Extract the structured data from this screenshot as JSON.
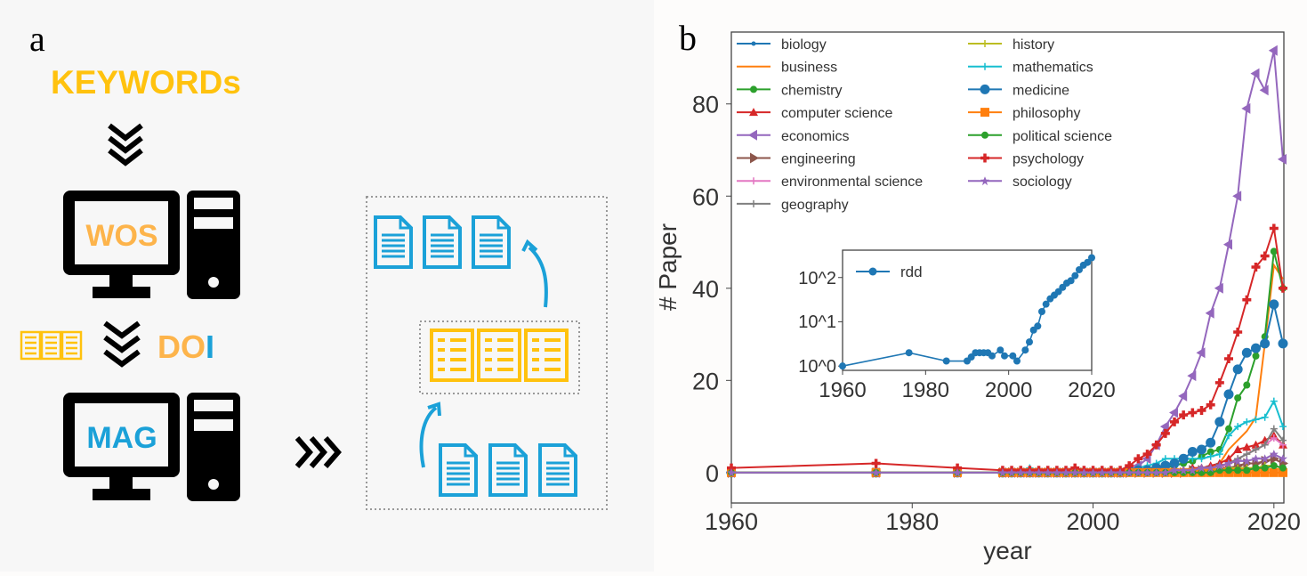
{
  "panel_a": {
    "label": "a",
    "keywords": "KEYWORDs",
    "wos": "WOS",
    "doi_prefix": "DO",
    "doi_suffix": "I",
    "mag": "MAG",
    "colors": {
      "yellow": "#FFC20E",
      "orange": "#FDB44B",
      "blue": "#1BA1D8",
      "black": "#000000"
    }
  },
  "panel_b": {
    "label": "b"
  },
  "chart_data": [
    {
      "type": "line",
      "xlabel": "year",
      "ylabel": "# Paper",
      "xlim": [
        1960,
        2021.1
      ],
      "ylim": [
        -6.6,
        95.6
      ],
      "xticks": [
        1960,
        1980,
        2000,
        2020
      ],
      "yticks": [
        0,
        20,
        40,
        60,
        80
      ],
      "grid": false,
      "legend": "top-left, two columns",
      "x": [
        1960,
        1976,
        1985,
        1990,
        1991,
        1992,
        1993,
        1994,
        1995,
        1996,
        1997,
        1998,
        1999,
        2000,
        2001,
        2002,
        2003,
        2004,
        2005,
        2006,
        2007,
        2008,
        2009,
        2010,
        2011,
        2012,
        2013,
        2014,
        2015,
        2016,
        2017,
        2018,
        2019,
        2020,
        2021
      ],
      "series": [
        {
          "name": "biology",
          "color": "#1f77b4",
          "marker": "dot",
          "values": [
            0,
            0,
            0,
            0,
            0,
            0,
            0,
            0,
            0,
            0,
            0,
            0,
            0,
            0,
            0,
            0,
            0,
            0,
            0,
            0,
            0,
            0,
            0,
            0,
            0,
            0,
            0,
            0.5,
            0.5,
            0.5,
            0.5,
            1,
            1,
            1.5,
            1
          ]
        },
        {
          "name": "business",
          "color": "#ff7f0e",
          "marker": "none",
          "values": [
            0,
            0,
            0,
            0,
            0,
            0,
            0,
            0,
            0,
            0,
            0,
            0,
            0,
            0,
            0,
            0,
            0,
            0,
            0,
            0,
            0,
            0,
            0,
            0,
            0,
            0.5,
            1,
            2,
            5,
            7,
            9,
            12,
            28,
            45,
            42
          ]
        },
        {
          "name": "chemistry",
          "color": "#2ca02c",
          "marker": "circle",
          "values": [
            0,
            0,
            0,
            0,
            0,
            0,
            0,
            0,
            0,
            0,
            0,
            0,
            0,
            0,
            0,
            0,
            0,
            0.5,
            0.5,
            1,
            1,
            1,
            1.5,
            2,
            2.5,
            3.5,
            4.5,
            5,
            9.5,
            16.2,
            19,
            25.3,
            29.5,
            48,
            40
          ]
        },
        {
          "name": "computer science",
          "color": "#d62728",
          "marker": "triangle-up",
          "values": [
            0,
            0,
            0,
            0,
            0,
            0,
            0,
            0,
            0,
            0,
            0,
            0,
            0,
            0,
            0,
            0,
            0,
            0,
            0,
            0,
            0,
            0.5,
            0.5,
            0.5,
            1,
            1,
            1.5,
            2,
            3,
            5,
            5.5,
            6,
            7,
            8,
            6
          ]
        },
        {
          "name": "economics",
          "color": "#9467bd",
          "marker": "triangle-left",
          "values": [
            0,
            0,
            0,
            0,
            0,
            0,
            0,
            0,
            0,
            0,
            0,
            0,
            0,
            0,
            0,
            0,
            0,
            0.5,
            1.5,
            3,
            6,
            10,
            13,
            16.6,
            21,
            26,
            34.6,
            40,
            49.5,
            60,
            79,
            86.6,
            83,
            91.6,
            68
          ]
        },
        {
          "name": "engineering",
          "color": "#8c564b",
          "marker": "triangle-right",
          "values": [
            0,
            0,
            0,
            0,
            0,
            0,
            0,
            0,
            0,
            0,
            0,
            0,
            0,
            0,
            0,
            0,
            0,
            0,
            0,
            0,
            0,
            0,
            0,
            0,
            0.5,
            0.5,
            0.5,
            1,
            1,
            1.5,
            2,
            2,
            2.5,
            3,
            2
          ]
        },
        {
          "name": "environmental science",
          "color": "#e377c2",
          "marker": "tri-down",
          "values": [
            0,
            0,
            0,
            0,
            0,
            0,
            0,
            0,
            0,
            0,
            0,
            0,
            0,
            0,
            0,
            0,
            0,
            0,
            0,
            0,
            0,
            0,
            0,
            0.5,
            0.5,
            0.5,
            1,
            1,
            2,
            3,
            4,
            5,
            6,
            7.5,
            6
          ]
        },
        {
          "name": "geography",
          "color": "#7f7f7f",
          "marker": "tri-up",
          "values": [
            0,
            0,
            0,
            0,
            0,
            0,
            0,
            0,
            0,
            0,
            0,
            0,
            0,
            0,
            0,
            0,
            0,
            0,
            0,
            0,
            0,
            0,
            0.5,
            0.5,
            0.5,
            1,
            1,
            1.5,
            2,
            3,
            4,
            5,
            6,
            9.5,
            7
          ]
        },
        {
          "name": "history",
          "color": "#bcbd22",
          "marker": "vline",
          "values": [
            0,
            0,
            0,
            0,
            0,
            0,
            0,
            0,
            0,
            0,
            0,
            0,
            0,
            0,
            0,
            0,
            0,
            0,
            0,
            0,
            0,
            0,
            0,
            0,
            0,
            0,
            0.5,
            0.5,
            1,
            1,
            1,
            1,
            1.5,
            1.5,
            1
          ]
        },
        {
          "name": "mathematics",
          "color": "#17becf",
          "marker": "tri-left",
          "values": [
            0,
            0,
            0,
            0,
            0.5,
            0.5,
            1,
            0.5,
            0.5,
            0.5,
            0.5,
            0.5,
            0.5,
            0.5,
            0.5,
            0.5,
            0.5,
            0.5,
            1,
            1.5,
            2,
            3,
            3,
            3,
            3,
            3,
            3.5,
            4,
            8,
            10,
            11,
            11.5,
            12,
            15.5,
            10
          ]
        },
        {
          "name": "medicine",
          "color": "#1f77b4",
          "marker": "circle-large",
          "values": [
            0,
            0,
            0,
            0,
            0,
            0,
            0,
            0,
            0,
            0,
            0,
            0,
            0,
            0,
            0,
            0,
            0,
            0.5,
            0.5,
            0.5,
            1,
            1.5,
            2,
            3,
            4.5,
            5,
            6.5,
            11,
            17,
            22.4,
            26,
            27,
            28,
            36.5,
            28
          ]
        },
        {
          "name": "philosophy",
          "color": "#ff7f0e",
          "marker": "square",
          "values": [
            0,
            0,
            0,
            0,
            0,
            0,
            0,
            0,
            0,
            0,
            0,
            0,
            0,
            0,
            0,
            0,
            0,
            0,
            0,
            0,
            0,
            0,
            0,
            0,
            0,
            0,
            0,
            0,
            0,
            0,
            0,
            0,
            0,
            0,
            0
          ]
        },
        {
          "name": "political science",
          "color": "#2ca02c",
          "marker": "hexagon",
          "values": [
            0,
            0,
            0,
            0,
            0,
            0,
            0,
            0,
            0,
            0,
            0,
            0,
            0,
            0,
            0,
            0,
            0,
            0,
            0,
            0,
            0,
            0,
            0,
            0,
            0,
            0,
            0,
            0.5,
            0.5,
            0.5,
            0.5,
            1,
            1,
            1.5,
            1
          ]
        },
        {
          "name": "psychology",
          "color": "#d62728",
          "marker": "plus",
          "values": [
            1,
            2,
            1,
            0.5,
            0.5,
            0.5,
            0.5,
            0.5,
            0.5,
            0.5,
            0.5,
            1,
            0.5,
            0.5,
            0.5,
            0.5,
            0.5,
            1.5,
            3,
            4,
            6,
            8.5,
            11,
            12.5,
            13,
            13.5,
            14.7,
            19.5,
            24.7,
            30.5,
            37.5,
            44.6,
            47,
            53,
            40
          ]
        },
        {
          "name": "sociology",
          "color": "#9467bd",
          "marker": "star",
          "values": [
            0,
            0,
            0,
            0,
            0,
            0,
            0,
            0,
            0,
            0,
            0,
            0,
            0,
            0,
            0,
            0,
            0,
            0,
            0,
            0,
            0,
            0,
            0.5,
            0.5,
            0.5,
            1,
            1,
            1.5,
            2,
            2.5,
            2.5,
            3,
            3,
            4,
            3
          ]
        }
      ]
    },
    {
      "type": "line",
      "scale": "log-y",
      "xlim": [
        1960,
        2020
      ],
      "ylim": [
        0.8,
        415
      ],
      "xticks": [
        1960,
        1980,
        2000,
        2020
      ],
      "yticks": [
        1,
        10,
        100
      ],
      "ytick_labels": [
        "10^0",
        "10^1",
        "10^2"
      ],
      "legend": "top-left",
      "series": [
        {
          "name": "rdd",
          "color": "#1f77b4",
          "marker": "circle",
          "x": [
            1960,
            1976,
            1985,
            1990,
            1991,
            1992,
            1993,
            1994,
            1995,
            1996,
            1998,
            1999,
            2001,
            2002,
            2004,
            2005,
            2006,
            2007,
            2008,
            2009,
            2010,
            2011,
            2012,
            2013,
            2014,
            2015,
            2016,
            2017,
            2018,
            2019,
            2020
          ],
          "values": [
            1,
            2,
            1.3,
            1.3,
            1.6,
            2,
            2,
            2,
            2,
            1.7,
            2.3,
            1.7,
            1.7,
            1.3,
            2.3,
            3.5,
            6.5,
            8,
            17,
            25,
            33,
            40,
            48,
            60,
            75,
            85,
            110,
            150,
            190,
            220,
            280
          ]
        }
      ]
    }
  ]
}
